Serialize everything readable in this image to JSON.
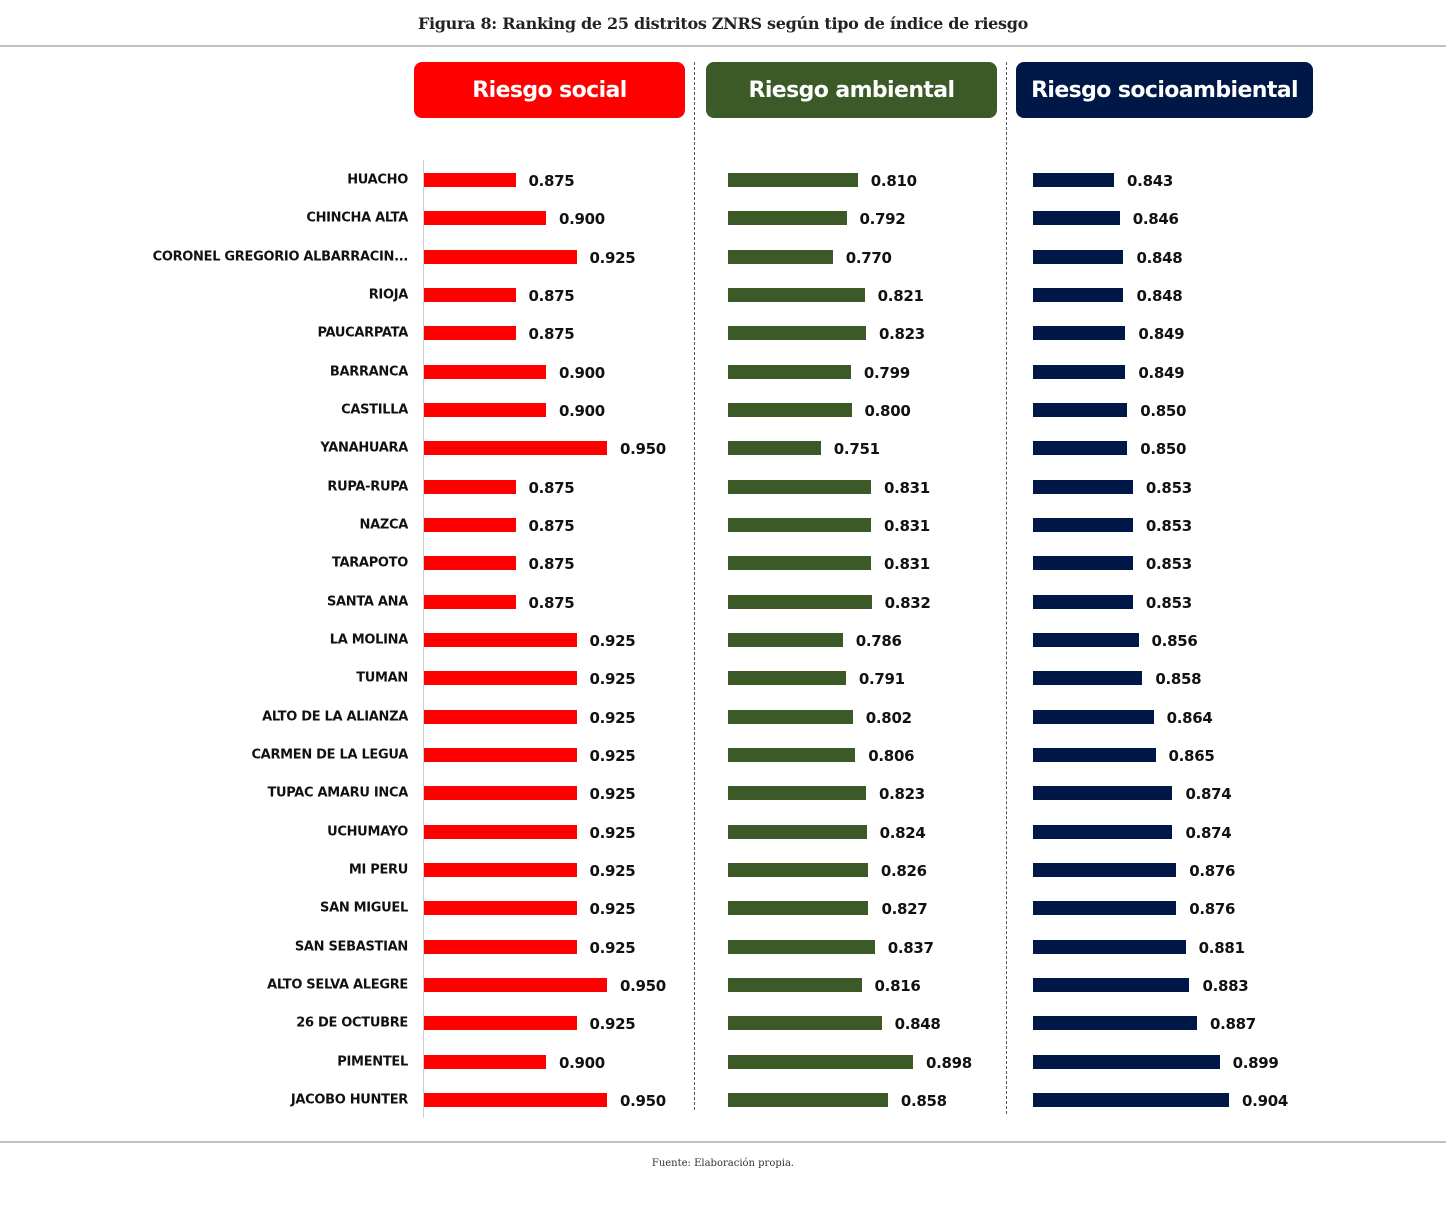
{
  "title": "Figura 8: Ranking de 25 distritos ZNRS según tipo de índice de riesgo",
  "source": "Fuente: Elaboración propia.",
  "chart_data": {
    "type": "bar",
    "orientation": "horizontal",
    "title": "Figura 8: Ranking de 25 distritos ZNRS según tipo de índice de riesgo",
    "categories": [
      "HUACHO",
      "CHINCHA ALTA",
      "CORONEL GREGORIO ALBARRACIN...",
      "RIOJA",
      "PAUCARPATA",
      "BARRANCA",
      "CASTILLA",
      "YANAHUARA",
      "RUPA-RUPA",
      "NAZCA",
      "TARAPOTO",
      "SANTA ANA",
      "LA MOLINA",
      "TUMAN",
      "ALTO DE LA ALIANZA",
      "CARMEN DE LA LEGUA",
      "TUPAC AMARU INCA",
      "UCHUMAYO",
      "MI PERU",
      "SAN MIGUEL",
      "SAN SEBASTIAN",
      "ALTO SELVA ALEGRE",
      "26 DE OCTUBRE",
      "PIMENTEL",
      "JACOBO HUNTER"
    ],
    "series": [
      {
        "name": "Riesgo social",
        "color": "#ff0000",
        "xlim": [
          0.8,
          0.97
        ],
        "values": [
          0.875,
          0.9,
          0.925,
          0.875,
          0.875,
          0.9,
          0.9,
          0.95,
          0.875,
          0.875,
          0.875,
          0.875,
          0.925,
          0.925,
          0.925,
          0.925,
          0.925,
          0.925,
          0.925,
          0.925,
          0.925,
          0.95,
          0.925,
          0.9,
          0.95
        ],
        "labels": [
          "0.875",
          "0.900",
          "0.925",
          "0.875",
          "0.875",
          "0.900",
          "0.900",
          "0.950",
          "0.875",
          "0.875",
          "0.875",
          "0.875",
          "0.925",
          "0.925",
          "0.925",
          "0.925",
          "0.925",
          "0.925",
          "0.925",
          "0.925",
          "0.925",
          "0.950",
          "0.925",
          "0.900",
          "0.950"
        ]
      },
      {
        "name": "Riesgo ambiental",
        "color": "#3b5a27",
        "xlim": [
          0.603,
          0.98
        ],
        "values": [
          0.81,
          0.792,
          0.77,
          0.821,
          0.823,
          0.799,
          0.8,
          0.751,
          0.831,
          0.831,
          0.831,
          0.832,
          0.786,
          0.791,
          0.802,
          0.806,
          0.823,
          0.824,
          0.826,
          0.827,
          0.837,
          0.816,
          0.848,
          0.898,
          0.858
        ],
        "labels": [
          "0.810",
          "0.792",
          "0.770",
          "0.821",
          "0.823",
          "0.799",
          "0.800",
          "0.751",
          "0.831",
          "0.831",
          "0.831",
          "0.832",
          "0.786",
          "0.791",
          "0.802",
          "0.806",
          "0.823",
          "0.824",
          "0.826",
          "0.827",
          "0.837",
          "0.816",
          "0.848",
          "0.898",
          "0.858"
        ]
      },
      {
        "name": "Riesgo socioambiental",
        "color": "#001848",
        "xlim": [
          0.8,
          0.93
        ],
        "values": [
          0.843,
          0.846,
          0.848,
          0.848,
          0.849,
          0.849,
          0.85,
          0.85,
          0.853,
          0.853,
          0.853,
          0.853,
          0.856,
          0.858,
          0.864,
          0.865,
          0.874,
          0.874,
          0.876,
          0.876,
          0.881,
          0.883,
          0.887,
          0.899,
          0.904
        ],
        "labels": [
          "0.843",
          "0.846",
          "0.848",
          "0.848",
          "0.849",
          "0.849",
          "0.850",
          "0.850",
          "0.853",
          "0.853",
          "0.853",
          "0.853",
          "0.856",
          "0.858",
          "0.864",
          "0.865",
          "0.874",
          "0.874",
          "0.876",
          "0.876",
          "0.881",
          "0.883",
          "0.887",
          "0.899",
          "0.904"
        ]
      }
    ],
    "xlabel": "",
    "ylabel": "",
    "grid": false,
    "legend": "top"
  }
}
